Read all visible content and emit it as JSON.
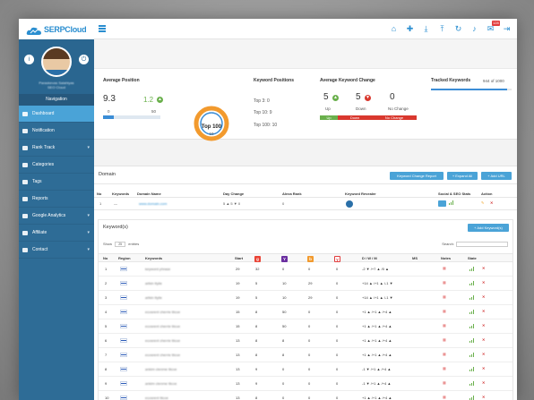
{
  "app": {
    "logo_text": "SERPCloud"
  },
  "sidebar": {
    "profile_name": "Paraskevas Salahiyas",
    "profile_sub": "SEO Cloud",
    "nav_title": "Navigation",
    "items": [
      {
        "label": "Dashboard",
        "icon": "dashboard-icon",
        "active": true
      },
      {
        "label": "Notification",
        "icon": "bell-icon"
      },
      {
        "label": "Rank Track",
        "icon": "chart-icon",
        "chevron": true
      },
      {
        "label": "Categories",
        "icon": "folder-icon"
      },
      {
        "label": "Tags",
        "icon": "tag-icon"
      },
      {
        "label": "Reports",
        "icon": "file-icon"
      },
      {
        "label": "Google Analytics",
        "icon": "analytics-icon",
        "chevron": true
      },
      {
        "label": "Affiliate",
        "icon": "users-icon",
        "chevron": true
      },
      {
        "label": "Contact",
        "icon": "phone-icon",
        "chevron": true
      }
    ]
  },
  "topbar": {
    "icons": [
      "home-icon",
      "plus-icon",
      "download-icon",
      "upload-icon",
      "refresh-icon",
      "bell-icon",
      "message-icon",
      "logout-icon"
    ],
    "badge": "128"
  },
  "stats": {
    "avg_position": {
      "title": "Average Position",
      "value": "9.3",
      "change": "1.2",
      "slider_low": "0",
      "slider_high": "50"
    },
    "donut": {
      "label": "Top 100",
      "value": "10"
    },
    "keyword_positions": {
      "title": "Keyword Positions",
      "rows": [
        "Top 3: 0",
        "Top 10: 9",
        "Top 100: 10"
      ]
    },
    "avg_change": {
      "title": "Average Keyword Change",
      "up": "5",
      "down": "5",
      "nochange": "0",
      "up_label": "Up",
      "down_label": "Down",
      "nochange_label": "No Change",
      "bar_up": "Up",
      "bar_down": "Down",
      "bar_no": "No Change"
    },
    "tracked": {
      "title": "Tracked Keywords",
      "value": "944 of 1000",
      "fraction": 0.944
    }
  },
  "domain": {
    "title": "Domain",
    "buttons": [
      "Keyword Change Report",
      "+ Expand All",
      "+ Add URL"
    ],
    "headers": [
      "No",
      "Keywords",
      "Domain Name",
      "Day Change",
      "Alexa Rank",
      "Keyword Revealer",
      "Social & SEO Stats",
      "Action"
    ],
    "row": {
      "no": "1",
      "kw": "—",
      "domain": "www.domain.com",
      "day_change": "5 ▲ 5 ▼ 0",
      "alexa": "0"
    }
  },
  "keywords": {
    "title": "Keyword(s)",
    "add_button": "+ Add Keyword(s)",
    "show_label": "Show",
    "show_value": "25",
    "entries_label": "entries",
    "search_label": "Search:",
    "headers": [
      "No",
      "Region",
      "Keywords",
      "Start",
      "",
      "",
      "",
      "",
      "D / W / M",
      "MS",
      "Notes",
      "State"
    ],
    "rows": [
      {
        "no": "1",
        "kw": "keyword phrase",
        "start": "29",
        "g": "32",
        "y": "0",
        "b": "0",
        "x": "0",
        "dwm": "-2 ▼ /+7 ▲ /0 ▲"
      },
      {
        "no": "2",
        "kw": "arlkin ttylie",
        "start": "19",
        "g": "5",
        "y": "10",
        "b": "29",
        "x": "0",
        "dwm": "+14 ▲ /+1 ▲ /-1 ▼"
      },
      {
        "no": "3",
        "kw": "arlkin ttylie",
        "start": "19",
        "g": "5",
        "y": "10",
        "b": "29",
        "x": "0",
        "dwm": "+14 ▲ /+1 ▲ /-1 ▼"
      },
      {
        "no": "4",
        "kw": "ecosrent cherrie tlicoe",
        "start": "15",
        "g": "8",
        "y": "50",
        "b": "0",
        "x": "0",
        "dwm": "+1 ▲ /+1 ▲ /+4 ▲"
      },
      {
        "no": "5",
        "kw": "ecosrent cherrie tlicoe",
        "start": "15",
        "g": "8",
        "y": "50",
        "b": "0",
        "x": "0",
        "dwm": "+1 ▲ /+1 ▲ /+4 ▲"
      },
      {
        "no": "6",
        "kw": "ecosrent cherrie tlicoe",
        "start": "13",
        "g": "8",
        "y": "8",
        "b": "0",
        "x": "0",
        "dwm": "+1 ▲ /+1 ▲ /+4 ▲"
      },
      {
        "no": "7",
        "kw": "ecosrent cherrie tlicoe",
        "start": "13",
        "g": "8",
        "y": "8",
        "b": "0",
        "x": "0",
        "dwm": "+1 ▲ /+1 ▲ /+4 ▲"
      },
      {
        "no": "8",
        "kw": "ankim ctenme tlicoe",
        "start": "13",
        "g": "9",
        "y": "0",
        "b": "0",
        "x": "0",
        "dwm": "-1 ▼ /+1 ▲ /+4 ▲"
      },
      {
        "no": "9",
        "kw": "ankim ctenme tlicoe",
        "start": "13",
        "g": "9",
        "y": "0",
        "b": "0",
        "x": "0",
        "dwm": "-1 ▼ /+1 ▲ /+4 ▲"
      },
      {
        "no": "10",
        "kw": "ecosrent tlicoe",
        "start": "13",
        "g": "8",
        "y": "0",
        "b": "0",
        "x": "0",
        "dwm": "+1 ▲ /+1 ▲ /+4 ▲"
      }
    ]
  },
  "colors": {
    "accent": "#4aa3d7",
    "sidebar": "#2e6c96",
    "up": "#6ab04c",
    "down": "#d9382e",
    "donut": "#f29a2e"
  }
}
